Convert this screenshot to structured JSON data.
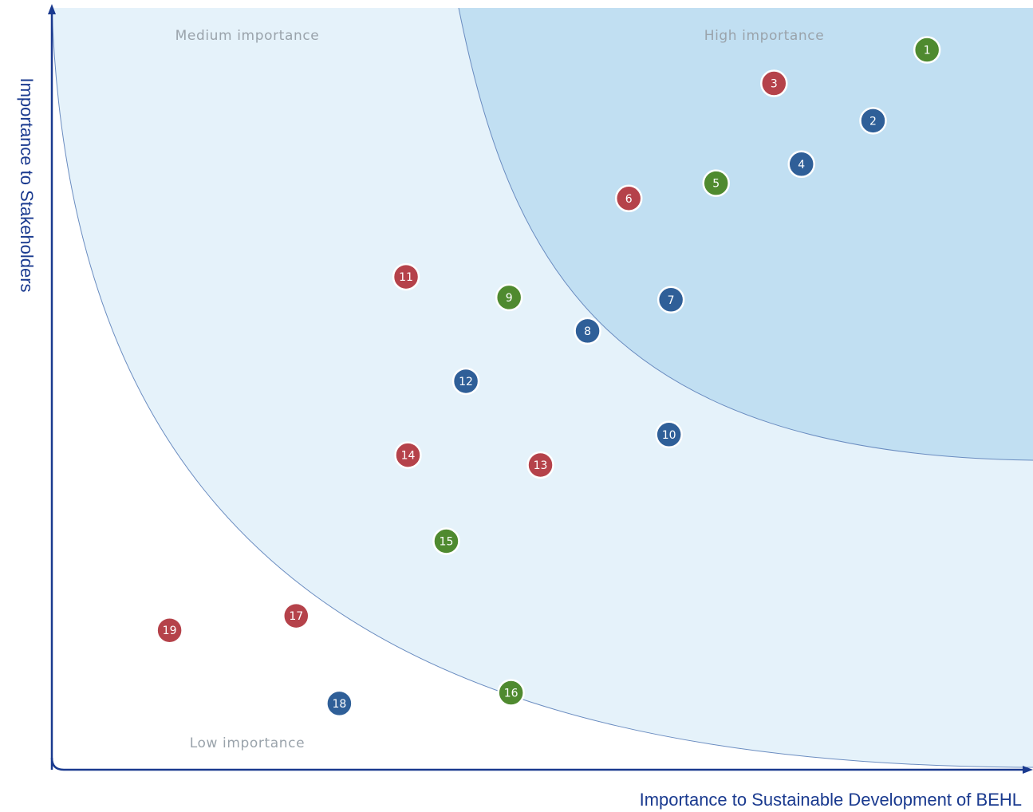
{
  "chart_data": {
    "type": "scatter",
    "xlabel": "Importance to Sustainable Development of BEHL",
    "ylabel": "Importance to Stakeholders",
    "xlim": [
      0,
      100
    ],
    "ylim": [
      0,
      100
    ],
    "grid": false,
    "zones": [
      {
        "label": "High importance",
        "color": "#c1dff2"
      },
      {
        "label": "Medium importance",
        "color": "#e5f2fa"
      },
      {
        "label": "Low importance",
        "color": "#ffffff"
      }
    ],
    "points": [
      {
        "label": "1",
        "x": 89.2,
        "y": 94.5,
        "color": "#4f8a2f"
      },
      {
        "label": "2",
        "x": 83.7,
        "y": 85.2,
        "color": "#2f5f98"
      },
      {
        "label": "3",
        "x": 73.6,
        "y": 90.1,
        "color": "#b5424a"
      },
      {
        "label": "4",
        "x": 76.4,
        "y": 79.5,
        "color": "#2f5f98"
      },
      {
        "label": "5",
        "x": 67.7,
        "y": 77.0,
        "color": "#4f8a2f"
      },
      {
        "label": "6",
        "x": 58.8,
        "y": 75.0,
        "color": "#b5424a"
      },
      {
        "label": "7",
        "x": 63.1,
        "y": 61.7,
        "color": "#2f5f98"
      },
      {
        "label": "8",
        "x": 54.6,
        "y": 57.6,
        "color": "#2f5f98"
      },
      {
        "label": "9",
        "x": 46.6,
        "y": 62.0,
        "color": "#4f8a2f"
      },
      {
        "label": "10",
        "x": 62.9,
        "y": 44.0,
        "color": "#2f5f98"
      },
      {
        "label": "11",
        "x": 36.1,
        "y": 64.7,
        "color": "#b5424a"
      },
      {
        "label": "12",
        "x": 42.2,
        "y": 51.0,
        "color": "#2f5f98"
      },
      {
        "label": "13",
        "x": 49.8,
        "y": 40.0,
        "color": "#b5424a"
      },
      {
        "label": "14",
        "x": 36.3,
        "y": 41.3,
        "color": "#b5424a"
      },
      {
        "label": "15",
        "x": 40.2,
        "y": 30.0,
        "color": "#4f8a2f"
      },
      {
        "label": "16",
        "x": 46.8,
        "y": 10.1,
        "color": "#4f8a2f"
      },
      {
        "label": "17",
        "x": 24.9,
        "y": 20.2,
        "color": "#b5424a"
      },
      {
        "label": "18",
        "x": 29.3,
        "y": 8.7,
        "color": "#2f5f98"
      },
      {
        "label": "19",
        "x": 12.0,
        "y": 18.3,
        "color": "#b5424a"
      }
    ]
  }
}
